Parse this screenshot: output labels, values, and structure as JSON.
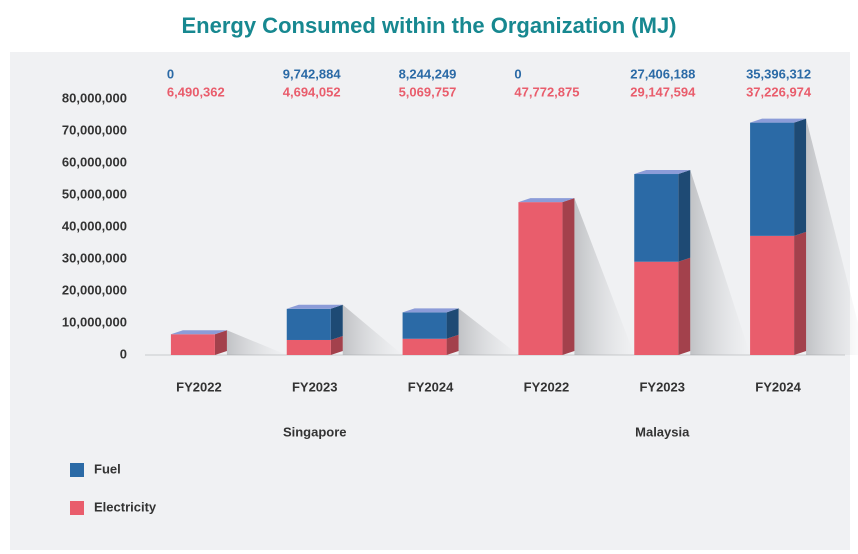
{
  "chart_data": {
    "type": "bar3d_stacked",
    "title": "Energy Consumed within the Organization (MJ)",
    "categories": [
      "FY2022",
      "FY2023",
      "FY2024",
      "FY2022",
      "FY2023",
      "FY2024"
    ],
    "groups": [
      "Singapore",
      "Malaysia"
    ],
    "series": [
      {
        "name": "Fuel",
        "color": "#2b6aa6",
        "values": [
          0,
          9742884,
          8244249,
          0,
          27406188,
          35396312
        ],
        "value_labels": [
          "0",
          "9,742,884",
          "8,244,249",
          "0",
          "27,406,188",
          "35,396,312"
        ]
      },
      {
        "name": "Electricity",
        "color": "#e95d6c",
        "values": [
          6490362,
          4694052,
          5069757,
          47772875,
          29147594,
          37226974
        ],
        "value_labels": [
          "6,490,362",
          "4,694,052",
          "5,069,757",
          "47,772,875",
          "29,147,594",
          "37,226,974"
        ]
      }
    ],
    "ylim": [
      0,
      80000000
    ],
    "yticks": [
      0,
      {
        "value": 10000000,
        "label": "10,000,000"
      },
      {
        "value": 20000000,
        "label": "20,000,000"
      },
      {
        "value": 30000000,
        "label": "30,000,000"
      },
      {
        "value": 40000000,
        "label": "40,000,000"
      },
      {
        "value": 50000000,
        "label": "50,000,000"
      },
      {
        "value": 60000000,
        "label": "60,000,000"
      },
      {
        "value": 70000000,
        "label": "70,000,000"
      },
      {
        "value": 80000000,
        "label": "80,000,000"
      }
    ],
    "grid": false
  }
}
